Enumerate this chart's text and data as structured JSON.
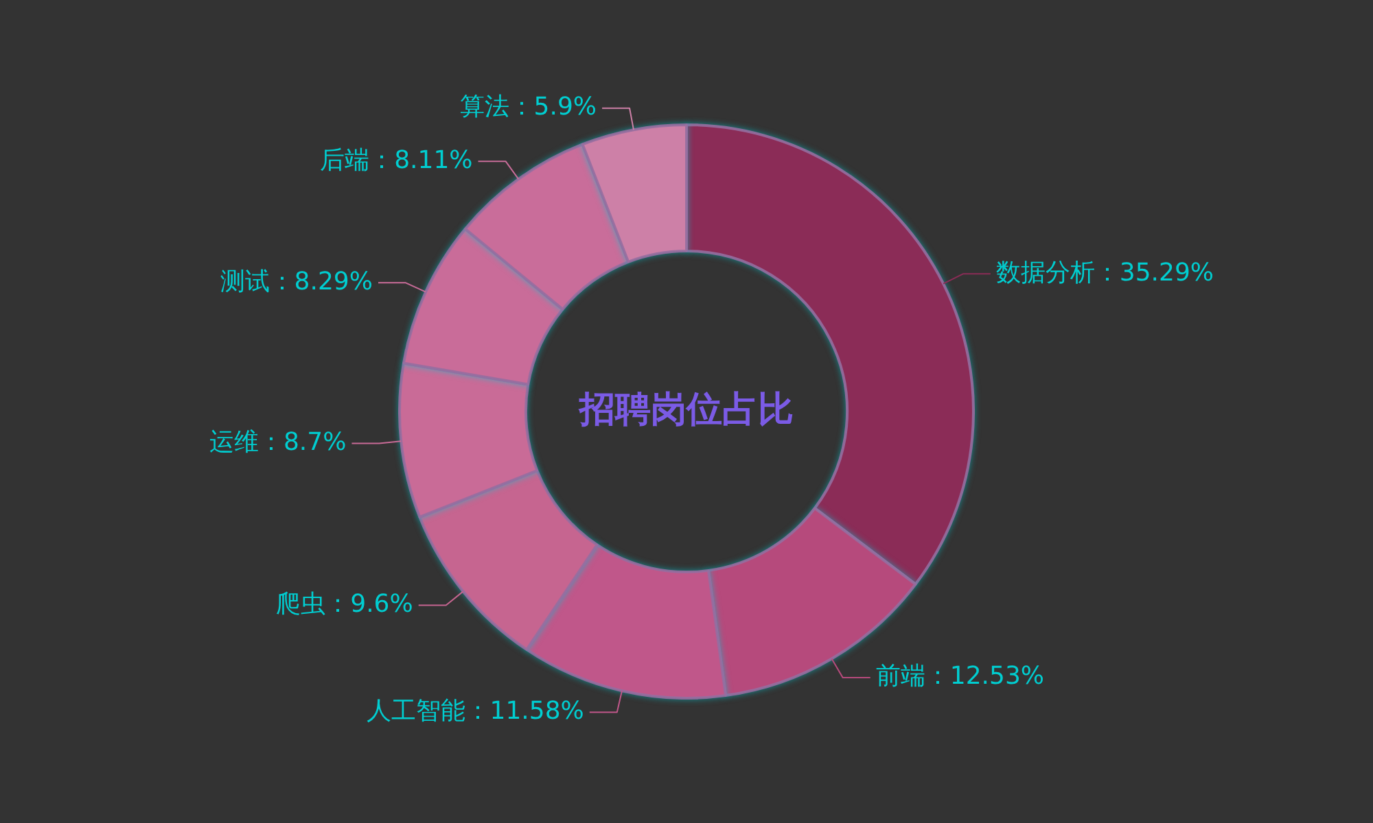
{
  "chart_data": {
    "type": "donut",
    "title": "招聘岗位占比",
    "categories": [
      "数据分析",
      "前端",
      "人工智能",
      "爬虫",
      "运维",
      "测试",
      "后端",
      "算法"
    ],
    "values": [
      35.29,
      12.53,
      11.58,
      9.6,
      8.7,
      8.29,
      8.11,
      5.9
    ],
    "value_labels": [
      "35.29%",
      "12.53%",
      "11.58%",
      "9.6%",
      "8.7%",
      "8.29%",
      "8.11%",
      "5.9%"
    ],
    "colors": [
      "#8b2c57",
      "#b64a7c",
      "#c0578a",
      "#c66590",
      "#c96b97",
      "#c96c99",
      "#c96d9a",
      "#cd80a7"
    ],
    "legend": false
  }
}
